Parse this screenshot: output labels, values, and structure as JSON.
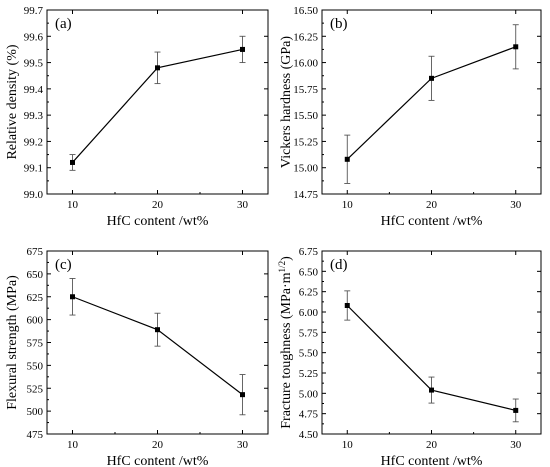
{
  "chart_data": [
    {
      "panel": "(a)",
      "type": "line",
      "x": [
        10,
        20,
        30
      ],
      "y": [
        99.12,
        99.48,
        99.55
      ],
      "yerr": [
        0.03,
        0.06,
        0.05
      ],
      "xlabel": "HfC content /wt%",
      "ylabel": "Relative density (%)",
      "xlim": [
        7,
        33
      ],
      "ylim": [
        99.0,
        99.7
      ],
      "xticks": [
        "10",
        "20",
        "30"
      ],
      "yticks": [
        "99.0",
        "99.1",
        "99.2",
        "99.3",
        "99.4",
        "99.5",
        "99.6",
        "99.7"
      ],
      "grid": false
    },
    {
      "panel": "(b)",
      "type": "line",
      "x": [
        10,
        20,
        30
      ],
      "y": [
        15.08,
        15.85,
        16.15
      ],
      "yerr": [
        0.23,
        0.21,
        0.21
      ],
      "xlabel": "HfC content /wt%",
      "ylabel": "Vickers hardness (GPa)",
      "xlim": [
        7,
        33
      ],
      "ylim": [
        14.75,
        16.5
      ],
      "xticks": [
        "10",
        "20",
        "30"
      ],
      "yticks": [
        "14.75",
        "15.00",
        "15.25",
        "15.50",
        "15.75",
        "16.00",
        "16.25",
        "16.50"
      ],
      "grid": false
    },
    {
      "panel": "(c)",
      "type": "line",
      "x": [
        10,
        20,
        30
      ],
      "y": [
        625,
        589,
        518
      ],
      "yerr": [
        20,
        18,
        22
      ],
      "xlabel": "HfC content /wt%",
      "ylabel": "Flexural strength (MPa)",
      "xlim": [
        7,
        33
      ],
      "ylim": [
        475,
        675
      ],
      "xticks": [
        "10",
        "20",
        "30"
      ],
      "yticks": [
        "475",
        "500",
        "525",
        "550",
        "575",
        "600",
        "625",
        "650",
        "675"
      ],
      "grid": false
    },
    {
      "panel": "(d)",
      "type": "line",
      "x": [
        10,
        20,
        30
      ],
      "y": [
        6.08,
        5.04,
        4.79
      ],
      "yerr": [
        0.18,
        0.16,
        0.14
      ],
      "xlabel": "HfC content /wt%",
      "ylabel": "Fracture toughness (MPa·m",
      "ylabel_sup": "1/2",
      "ylabel_end": ")",
      "xlim": [
        7,
        33
      ],
      "ylim": [
        4.5,
        6.75
      ],
      "xticks": [
        "10",
        "20",
        "30"
      ],
      "yticks": [
        "4.50",
        "4.75",
        "5.00",
        "5.25",
        "5.50",
        "5.75",
        "6.00",
        "6.25",
        "6.50",
        "6.75"
      ],
      "grid": false
    }
  ]
}
